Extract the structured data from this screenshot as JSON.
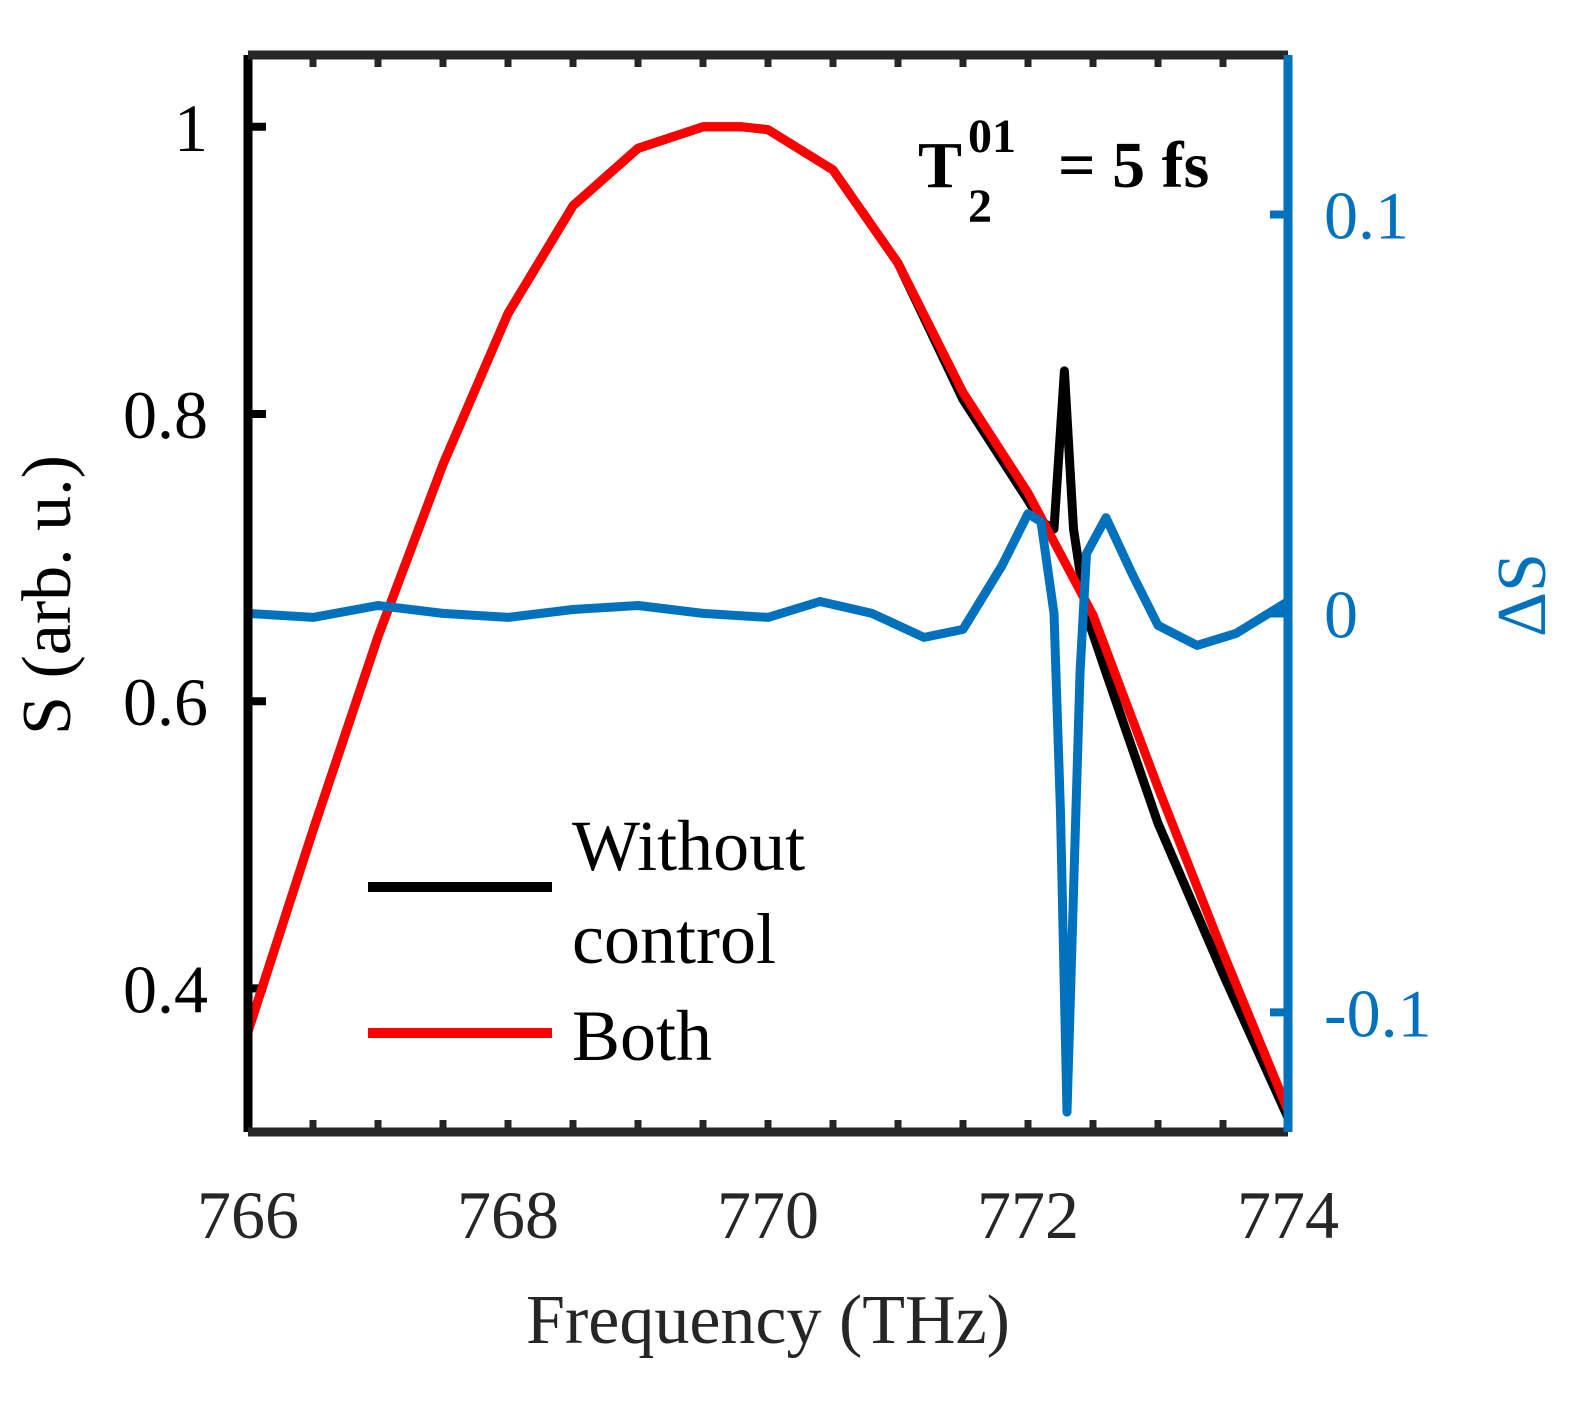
{
  "chart_data": {
    "type": "line",
    "xlabel": "Frequency (THz)",
    "ylabel_left": "S (arb. u.)",
    "ylabel_right": "ΔS",
    "xlim": [
      766,
      774
    ],
    "ylim_left": [
      0.3,
      1.05
    ],
    "ylim_right": [
      -0.13,
      0.14
    ],
    "x_ticks": [
      "766",
      "768",
      "770",
      "772",
      "774"
    ],
    "y_left_ticks": [
      "0.4",
      "0.6",
      "0.8",
      "1"
    ],
    "y_right_ticks": [
      "-0.1",
      "0",
      "0.1"
    ],
    "annotation": {
      "main": "T",
      "superscript": "01",
      "subscript": "2",
      "rest": "= 5 fs"
    },
    "legend": {
      "without_line1": "Without",
      "without_line2": "control",
      "both": "Both"
    },
    "colors": {
      "without_control": "#000000",
      "both": "#ff0000",
      "delta": "#0072bd",
      "right_axis": "#0072bd"
    },
    "series": [
      {
        "name": "Without control",
        "axis": "left",
        "x": [
          766.0,
          766.5,
          767.0,
          767.5,
          768.0,
          768.5,
          769.0,
          769.5,
          769.8,
          770.0,
          770.5,
          771.0,
          771.5,
          772.0,
          772.1,
          772.2,
          772.28,
          772.35,
          772.45,
          772.6,
          773.0,
          773.5,
          774.0
        ],
        "y": [
          0.37,
          0.51,
          0.645,
          0.765,
          0.87,
          0.945,
          0.985,
          1.0,
          1.0,
          0.998,
          0.97,
          0.905,
          0.81,
          0.74,
          0.725,
          0.72,
          0.83,
          0.72,
          0.66,
          0.62,
          0.515,
          0.41,
          0.31
        ]
      },
      {
        "name": "Both",
        "axis": "left",
        "x": [
          766.0,
          766.5,
          767.0,
          767.5,
          768.0,
          768.5,
          769.0,
          769.5,
          769.8,
          770.0,
          770.5,
          771.0,
          771.5,
          772.0,
          772.5,
          773.0,
          773.5,
          774.0
        ],
        "y": [
          0.37,
          0.51,
          0.645,
          0.765,
          0.87,
          0.945,
          0.985,
          1.0,
          1.0,
          0.998,
          0.97,
          0.905,
          0.815,
          0.745,
          0.66,
          0.54,
          0.425,
          0.315
        ]
      },
      {
        "name": "ΔS",
        "axis": "right",
        "x": [
          766.0,
          766.5,
          767.0,
          767.5,
          768.0,
          768.5,
          769.0,
          769.5,
          770.0,
          770.4,
          770.8,
          771.2,
          771.5,
          771.8,
          772.0,
          772.1,
          772.2,
          772.25,
          772.3,
          772.35,
          772.4,
          772.45,
          772.6,
          772.8,
          773.0,
          773.3,
          773.6,
          774.0
        ],
        "y": [
          0.0,
          -0.001,
          0.002,
          0.0,
          -0.001,
          0.001,
          0.002,
          0.0,
          -0.001,
          0.003,
          0.0,
          -0.006,
          -0.004,
          0.012,
          0.025,
          0.023,
          0.0,
          -0.05,
          -0.125,
          -0.07,
          -0.015,
          0.015,
          0.024,
          0.01,
          -0.003,
          -0.008,
          -0.005,
          0.003
        ]
      }
    ]
  }
}
